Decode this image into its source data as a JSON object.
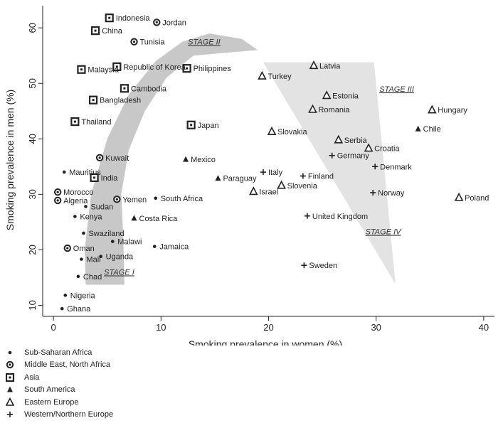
{
  "chart_data": {
    "type": "scatter",
    "xlabel": "Smoking prevalence in women (%)",
    "ylabel": "Smoking prevalence in men (%)",
    "xlim": [
      -1,
      41
    ],
    "ylim": [
      8,
      64
    ],
    "xticks": [
      0,
      10,
      20,
      30,
      40
    ],
    "yticks": [
      10,
      20,
      30,
      40,
      50,
      60
    ],
    "grid": false,
    "legend_position": "bottom-left",
    "stage_labels": [
      {
        "text": "STAGE I",
        "x": 4.7,
        "y": 15.5
      },
      {
        "text": "STAGE II",
        "x": 12.5,
        "y": 57.0
      },
      {
        "text": "STAGE III",
        "x": 30.3,
        "y": 48.5
      },
      {
        "text": "STAGE IV",
        "x": 29.0,
        "y": 22.8
      }
    ],
    "bands": [
      {
        "name": "curve",
        "color": "#c8c8c8",
        "x": [
          3.0,
          2.9,
          3.5,
          5.0,
          7.0,
          9.5,
          12.0,
          14.5,
          17.5,
          19.0,
          16.0,
          13.0,
          10.5,
          8.5,
          7.0,
          6.3,
          6.5,
          6.6,
          3.0
        ]
      },
      {
        "name": "wedge",
        "color": "#e3e3e3",
        "x": [
          19.5,
          29.8,
          31.8,
          19.5
        ]
      }
    ],
    "band_y": {
      "curve": [
        13.7,
        20.0,
        30.0,
        40.0,
        48.0,
        54.0,
        57.5,
        59.0,
        58.0,
        56.0,
        55.5,
        55.0,
        51.0,
        45.0,
        38.0,
        30.0,
        22.0,
        13.7,
        13.7
      ],
      "wedge": [
        53.8,
        53.8,
        13.8,
        53.8
      ]
    },
    "series": [
      {
        "name": "Sub-Saharan Africa",
        "marker": "dot",
        "points": [
          {
            "label": "Mauritius",
            "x": 1.0,
            "y": 34.0
          },
          {
            "label": "Sudan",
            "x": 3.0,
            "y": 27.8
          },
          {
            "label": "Kenya",
            "x": 2.0,
            "y": 26.0
          },
          {
            "label": "Swaziland",
            "x": 2.8,
            "y": 23.0
          },
          {
            "label": "Malawi",
            "x": 5.5,
            "y": 21.5
          },
          {
            "label": "Uganda",
            "x": 4.4,
            "y": 18.8
          },
          {
            "label": "Mali",
            "x": 2.6,
            "y": 18.3
          },
          {
            "label": "Chad",
            "x": 2.3,
            "y": 15.2
          },
          {
            "label": "Nigeria",
            "x": 1.1,
            "y": 11.8
          },
          {
            "label": "Ghana",
            "x": 0.8,
            "y": 9.4
          },
          {
            "label": "South Africa",
            "x": 9.5,
            "y": 29.3
          },
          {
            "label": "Jamaica",
            "x": 9.4,
            "y": 20.6
          }
        ]
      },
      {
        "name": "Middle East, North Africa",
        "marker": "ring",
        "points": [
          {
            "label": "Jordan",
            "x": 9.6,
            "y": 61.0
          },
          {
            "label": "Tunisia",
            "x": 7.5,
            "y": 57.5
          },
          {
            "label": "Kuwait",
            "x": 4.3,
            "y": 36.6
          },
          {
            "label": "Morocco",
            "x": 0.4,
            "y": 30.4
          },
          {
            "label": "Algeria",
            "x": 0.4,
            "y": 28.9
          },
          {
            "label": "Yemen",
            "x": 5.9,
            "y": 29.1
          },
          {
            "label": "Oman",
            "x": 1.3,
            "y": 20.3
          }
        ]
      },
      {
        "name": "Asia",
        "marker": "square",
        "points": [
          {
            "label": "Indonesia",
            "x": 5.2,
            "y": 61.8
          },
          {
            "label": "China",
            "x": 3.9,
            "y": 59.5
          },
          {
            "label": "Republic of Korea",
            "x": 5.9,
            "y": 53.0
          },
          {
            "label": "Malaysia",
            "x": 2.6,
            "y": 52.5
          },
          {
            "label": "Philippines",
            "x": 12.4,
            "y": 52.7
          },
          {
            "label": "Cambodia",
            "x": 6.6,
            "y": 49.1
          },
          {
            "label": "Bangladesh",
            "x": 3.7,
            "y": 47.0
          },
          {
            "label": "Thailand",
            "x": 2.0,
            "y": 43.1
          },
          {
            "label": "Japan",
            "x": 12.8,
            "y": 42.5
          },
          {
            "label": "India",
            "x": 3.8,
            "y": 33.0
          }
        ]
      },
      {
        "name": "South America",
        "marker": "triangle",
        "points": [
          {
            "label": "Mexico",
            "x": 12.3,
            "y": 36.3
          },
          {
            "label": "Paraguay",
            "x": 15.3,
            "y": 32.9
          },
          {
            "label": "Costa Rica",
            "x": 7.5,
            "y": 25.7
          },
          {
            "label": "Chile",
            "x": 33.9,
            "y": 41.8
          }
        ]
      },
      {
        "name": "Eastern Europe",
        "marker": "tri-open",
        "points": [
          {
            "label": "Latvia",
            "x": 24.2,
            "y": 53.2
          },
          {
            "label": "Turkey",
            "x": 19.4,
            "y": 51.3
          },
          {
            "label": "Estonia",
            "x": 25.4,
            "y": 47.8
          },
          {
            "label": "Romania",
            "x": 24.1,
            "y": 45.3
          },
          {
            "label": "Hungary",
            "x": 35.2,
            "y": 45.2
          },
          {
            "label": "Slovakia",
            "x": 20.3,
            "y": 41.3
          },
          {
            "label": "Serbia",
            "x": 26.5,
            "y": 39.8
          },
          {
            "label": "Croatia",
            "x": 29.3,
            "y": 38.3
          },
          {
            "label": "Slovenia",
            "x": 21.2,
            "y": 31.6
          },
          {
            "label": "Israel",
            "x": 18.6,
            "y": 30.5
          },
          {
            "label": "Poland",
            "x": 37.7,
            "y": 29.4
          }
        ]
      },
      {
        "name": "Western/Northern Europe",
        "marker": "plus",
        "points": [
          {
            "label": "Germany",
            "x": 25.9,
            "y": 37.0
          },
          {
            "label": "Denmark",
            "x": 29.9,
            "y": 35.0
          },
          {
            "label": "Italy",
            "x": 19.5,
            "y": 34.0
          },
          {
            "label": "Finland",
            "x": 23.2,
            "y": 33.3
          },
          {
            "label": "Norway",
            "x": 29.7,
            "y": 30.3
          },
          {
            "label": "United Kingdom",
            "x": 23.6,
            "y": 26.1
          },
          {
            "label": "Sweden",
            "x": 23.3,
            "y": 17.2
          }
        ]
      }
    ]
  }
}
